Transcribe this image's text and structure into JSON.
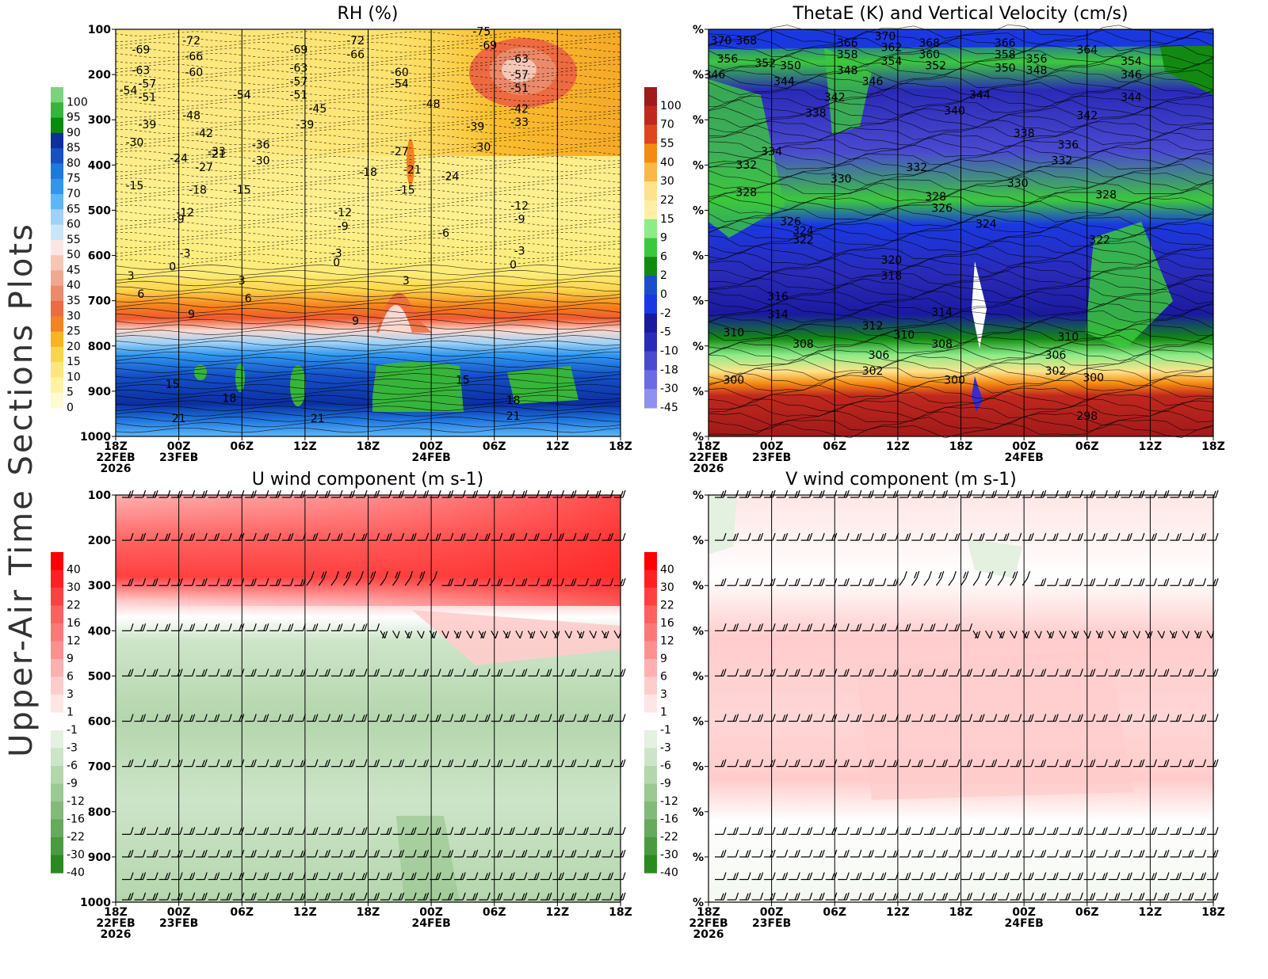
{
  "side_title": "Upper-Air Time Sections Plots",
  "time_axis": {
    "ticks": [
      "18Z",
      "00Z",
      "06Z",
      "12Z",
      "18Z",
      "00Z",
      "06Z",
      "12Z",
      "18Z"
    ],
    "dates": [
      "22FEB",
      "23FEB",
      "",
      "",
      "",
      "24FEB",
      "",
      "",
      ""
    ],
    "year": "2026"
  },
  "pressure_ticks": [
    "100",
    "200",
    "300",
    "400",
    "500",
    "600",
    "700",
    "800",
    "900",
    "1000"
  ],
  "percent_tick": "%",
  "chart_data": [
    {
      "type": "heatmap",
      "title": "RH (%)",
      "y_axis": "pressure (hPa)",
      "ylim": [
        1000,
        100
      ],
      "colorbar": {
        "labels": [
          "100",
          "95",
          "90",
          "85",
          "80",
          "75",
          "70",
          "65",
          "60",
          "55",
          "50",
          "45",
          "40",
          "35",
          "30",
          "25",
          "20",
          "15",
          "10",
          "5",
          "0"
        ],
        "colors": [
          "#7ad57a",
          "#37b53a",
          "#0b8b0b",
          "#0b2fa0",
          "#1550c8",
          "#1f77e0",
          "#2f97f0",
          "#5fb7f5",
          "#9fd2f8",
          "#c9e5fa",
          "#fbe6e6",
          "#f6c7b7",
          "#f1a891",
          "#ec8a6a",
          "#ee6a40",
          "#f5821c",
          "#fab51e",
          "#fdd54a",
          "#fde67a",
          "#fdf3a3",
          "#fffbd0"
        ]
      },
      "contour_labels": [
        {
          "t": 0.2,
          "p": 150,
          "v": "-69"
        },
        {
          "t": 0.2,
          "p": 195,
          "v": "-63"
        },
        {
          "t": 0.25,
          "p": 225,
          "v": "-57"
        },
        {
          "t": 0.25,
          "p": 255,
          "v": "-51"
        },
        {
          "t": 0.1,
          "p": 240,
          "v": "-54"
        },
        {
          "t": 0.25,
          "p": 315,
          "v": "-39"
        },
        {
          "t": 0.15,
          "p": 355,
          "v": "-30"
        },
        {
          "t": 0.15,
          "p": 450,
          "v": "-15"
        },
        {
          "t": 0.6,
          "p": 130,
          "v": "-72"
        },
        {
          "t": 0.62,
          "p": 165,
          "v": "-66"
        },
        {
          "t": 0.62,
          "p": 200,
          "v": "-60"
        },
        {
          "t": 0.6,
          "p": 295,
          "v": "-48"
        },
        {
          "t": 0.7,
          "p": 335,
          "v": "-42"
        },
        {
          "t": 0.8,
          "p": 375,
          "v": "-33"
        },
        {
          "t": 0.7,
          "p": 410,
          "v": "-27"
        },
        {
          "t": 0.5,
          "p": 390,
          "v": "-24"
        },
        {
          "t": 0.8,
          "p": 380,
          "v": "-21"
        },
        {
          "t": 0.65,
          "p": 460,
          "v": "-18"
        },
        {
          "t": 0.55,
          "p": 510,
          "v": "-12"
        },
        {
          "t": 0.5,
          "p": 525,
          "v": "-9"
        },
        {
          "t": 0.55,
          "p": 600,
          "v": "-3"
        },
        {
          "t": 0.45,
          "p": 630,
          "v": "0"
        },
        {
          "t": 1.0,
          "p": 250,
          "v": "-54"
        },
        {
          "t": 1.15,
          "p": 360,
          "v": "-36"
        },
        {
          "t": 1.15,
          "p": 395,
          "v": "-30"
        },
        {
          "t": 1.0,
          "p": 460,
          "v": "-15"
        },
        {
          "t": 1.45,
          "p": 150,
          "v": "-69"
        },
        {
          "t": 1.45,
          "p": 190,
          "v": "-63"
        },
        {
          "t": 1.45,
          "p": 220,
          "v": "-57"
        },
        {
          "t": 1.45,
          "p": 250,
          "v": "-51"
        },
        {
          "t": 1.6,
          "p": 280,
          "v": "-45"
        },
        {
          "t": 1.5,
          "p": 315,
          "v": "-39"
        },
        {
          "t": 1.9,
          "p": 130,
          "v": "-72"
        },
        {
          "t": 1.9,
          "p": 160,
          "v": "-66"
        },
        {
          "t": 2.0,
          "p": 420,
          "v": "-18"
        },
        {
          "t": 1.8,
          "p": 510,
          "v": "-12"
        },
        {
          "t": 1.8,
          "p": 540,
          "v": "-9"
        },
        {
          "t": 1.75,
          "p": 600,
          "v": "-3"
        },
        {
          "t": 1.75,
          "p": 620,
          "v": "0"
        },
        {
          "t": 2.25,
          "p": 200,
          "v": "-60"
        },
        {
          "t": 2.25,
          "p": 225,
          "v": "-54"
        },
        {
          "t": 2.5,
          "p": 270,
          "v": "-48"
        },
        {
          "t": 2.25,
          "p": 375,
          "v": "-27"
        },
        {
          "t": 2.35,
          "p": 415,
          "v": "-21"
        },
        {
          "t": 2.3,
          "p": 460,
          "v": "-15"
        },
        {
          "t": 2.65,
          "p": 430,
          "v": "-24"
        },
        {
          "t": 2.85,
          "p": 320,
          "v": "-39"
        },
        {
          "t": 2.9,
          "p": 365,
          "v": "-30"
        },
        {
          "t": 2.6,
          "p": 555,
          "v": "-6"
        },
        {
          "t": 2.9,
          "p": 110,
          "v": "-75"
        },
        {
          "t": 2.95,
          "p": 140,
          "v": "-69"
        },
        {
          "t": 3.2,
          "p": 170,
          "v": "-63"
        },
        {
          "t": 3.2,
          "p": 205,
          "v": "-57"
        },
        {
          "t": 3.2,
          "p": 235,
          "v": "-51"
        },
        {
          "t": 3.2,
          "p": 280,
          "v": "-42"
        },
        {
          "t": 3.2,
          "p": 310,
          "v": "-33"
        },
        {
          "t": 3.2,
          "p": 495,
          "v": "-12"
        },
        {
          "t": 3.2,
          "p": 525,
          "v": "-9"
        },
        {
          "t": 3.2,
          "p": 595,
          "v": "-3"
        },
        {
          "t": 3.15,
          "p": 625,
          "v": "0"
        },
        {
          "t": 0.12,
          "p": 650,
          "v": "3"
        },
        {
          "t": 0.2,
          "p": 690,
          "v": "6"
        },
        {
          "t": 0.6,
          "p": 735,
          "v": "9"
        },
        {
          "t": 1.0,
          "p": 660,
          "v": "3"
        },
        {
          "t": 1.05,
          "p": 700,
          "v": "6"
        },
        {
          "t": 2.3,
          "p": 660,
          "v": "3"
        },
        {
          "t": 1.9,
          "p": 750,
          "v": "9"
        },
        {
          "t": 0.45,
          "p": 890,
          "v": "15"
        },
        {
          "t": 0.9,
          "p": 920,
          "v": "18"
        },
        {
          "t": 0.5,
          "p": 965,
          "v": "21"
        },
        {
          "t": 1.6,
          "p": 965,
          "v": "21"
        },
        {
          "t": 2.75,
          "p": 880,
          "v": "15"
        },
        {
          "t": 3.15,
          "p": 925,
          "v": "18"
        },
        {
          "t": 3.15,
          "p": 960,
          "v": "21"
        }
      ]
    },
    {
      "type": "heatmap",
      "title": "ThetaE (K) and Vertical Velocity (cm/s)",
      "y_axis": "percent",
      "colorbar": {
        "labels": [
          "100",
          "70",
          "55",
          "40",
          "30",
          "22",
          "15",
          "9",
          "6",
          "2",
          "0",
          "-2",
          "-5",
          "-10",
          "-18",
          "-30",
          "-45"
        ],
        "colors": [
          "#a01a1a",
          "#c0281e",
          "#e0461e",
          "#f58a10",
          "#fab846",
          "#fde38a",
          "#fdf0a6",
          "#8cec88",
          "#3cc83c",
          "#128a12",
          "#1a4ecc",
          "#1a38e0",
          "#1a1aa0",
          "#2a2ab8",
          "#4a4ad0",
          "#6b6be4",
          "#9090f0"
        ]
      },
      "contour_labels": [
        {
          "t": 0.1,
          "p": 130,
          "v": "370"
        },
        {
          "t": 0.3,
          "p": 130,
          "v": "368"
        },
        {
          "t": 0.15,
          "p": 170,
          "v": "356"
        },
        {
          "t": 0.05,
          "p": 205,
          "v": "346"
        },
        {
          "t": 0.45,
          "p": 180,
          "v": "352"
        },
        {
          "t": 0.65,
          "p": 185,
          "v": "350"
        },
        {
          "t": 0.6,
          "p": 220,
          "v": "344"
        },
        {
          "t": 1.1,
          "p": 135,
          "v": "366"
        },
        {
          "t": 1.1,
          "p": 160,
          "v": "358"
        },
        {
          "t": 1.1,
          "p": 195,
          "v": "348"
        },
        {
          "t": 1.3,
          "p": 220,
          "v": "346"
        },
        {
          "t": 1.0,
          "p": 255,
          "v": "342"
        },
        {
          "t": 0.85,
          "p": 290,
          "v": "338"
        },
        {
          "t": 1.4,
          "p": 120,
          "v": "370"
        },
        {
          "t": 1.45,
          "p": 145,
          "v": "362"
        },
        {
          "t": 1.45,
          "p": 175,
          "v": "354"
        },
        {
          "t": 1.75,
          "p": 135,
          "v": "368"
        },
        {
          "t": 1.75,
          "p": 160,
          "v": "360"
        },
        {
          "t": 1.8,
          "p": 185,
          "v": "352"
        },
        {
          "t": 1.95,
          "p": 285,
          "v": "340"
        },
        {
          "t": 2.15,
          "p": 250,
          "v": "344"
        },
        {
          "t": 2.35,
          "p": 135,
          "v": "366"
        },
        {
          "t": 2.35,
          "p": 160,
          "v": "358"
        },
        {
          "t": 2.35,
          "p": 190,
          "v": "350"
        },
        {
          "t": 2.6,
          "p": 170,
          "v": "356"
        },
        {
          "t": 2.6,
          "p": 195,
          "v": "348"
        },
        {
          "t": 2.5,
          "p": 335,
          "v": "338"
        },
        {
          "t": 3.0,
          "p": 150,
          "v": "364"
        },
        {
          "t": 3.35,
          "p": 175,
          "v": "354"
        },
        {
          "t": 3.35,
          "p": 205,
          "v": "346"
        },
        {
          "t": 3.35,
          "p": 255,
          "v": "344"
        },
        {
          "t": 3.0,
          "p": 295,
          "v": "342"
        },
        {
          "t": 2.85,
          "p": 360,
          "v": "336"
        },
        {
          "t": 2.8,
          "p": 395,
          "v": "332"
        },
        {
          "t": 0.5,
          "p": 375,
          "v": "334"
        },
        {
          "t": 0.3,
          "p": 405,
          "v": "332"
        },
        {
          "t": 1.05,
          "p": 435,
          "v": "330"
        },
        {
          "t": 1.65,
          "p": 410,
          "v": "332"
        },
        {
          "t": 2.45,
          "p": 445,
          "v": "330"
        },
        {
          "t": 0.3,
          "p": 465,
          "v": "328"
        },
        {
          "t": 1.8,
          "p": 475,
          "v": "328"
        },
        {
          "t": 1.85,
          "p": 500,
          "v": "326"
        },
        {
          "t": 3.15,
          "p": 470,
          "v": "328"
        },
        {
          "t": 0.65,
          "p": 530,
          "v": "326"
        },
        {
          "t": 0.75,
          "p": 550,
          "v": "324"
        },
        {
          "t": 0.75,
          "p": 570,
          "v": "322"
        },
        {
          "t": 2.2,
          "p": 535,
          "v": "324"
        },
        {
          "t": 3.1,
          "p": 570,
          "v": "322"
        },
        {
          "t": 1.45,
          "p": 615,
          "v": "320"
        },
        {
          "t": 1.45,
          "p": 650,
          "v": "318"
        },
        {
          "t": 0.55,
          "p": 695,
          "v": "316"
        },
        {
          "t": 0.55,
          "p": 735,
          "v": "314"
        },
        {
          "t": 1.85,
          "p": 730,
          "v": "314"
        },
        {
          "t": 0.2,
          "p": 775,
          "v": "310"
        },
        {
          "t": 1.3,
          "p": 760,
          "v": "312"
        },
        {
          "t": 1.55,
          "p": 780,
          "v": "310"
        },
        {
          "t": 0.75,
          "p": 800,
          "v": "308"
        },
        {
          "t": 1.85,
          "p": 800,
          "v": "308"
        },
        {
          "t": 2.85,
          "p": 785,
          "v": "310"
        },
        {
          "t": 1.35,
          "p": 825,
          "v": "306"
        },
        {
          "t": 2.75,
          "p": 825,
          "v": "306"
        },
        {
          "t": 1.3,
          "p": 860,
          "v": "302"
        },
        {
          "t": 2.75,
          "p": 860,
          "v": "302"
        },
        {
          "t": 0.2,
          "p": 880,
          "v": "300"
        },
        {
          "t": 1.95,
          "p": 880,
          "v": "300"
        },
        {
          "t": 3.05,
          "p": 875,
          "v": "300"
        },
        {
          "t": 3.0,
          "p": 960,
          "v": "298"
        }
      ]
    },
    {
      "type": "heatmap",
      "title": "U wind component (m s-1)",
      "y_axis": "pressure (hPa)",
      "colorbar": {
        "labels": [
          "40",
          "30",
          "22",
          "16",
          "12",
          "9",
          "6",
          "3",
          "1",
          "-1",
          "-3",
          "-6",
          "-9",
          "-12",
          "-16",
          "-22",
          "-30",
          "-40"
        ],
        "colors": [
          "#ff0000",
          "#ff2020",
          "#ff4040",
          "#ff6060",
          "#ff7878",
          "#ff9090",
          "#ffb0b0",
          "#ffcccc",
          "#ffe6e6",
          "#ffffff",
          "#e4f0e0",
          "#cde4c8",
          "#b4d6ad",
          "#9bc893",
          "#82ba78",
          "#66aa5c",
          "#4a9a40",
          "#2a8a20"
        ]
      }
    },
    {
      "type": "heatmap",
      "title": "V wind component (m s-1)",
      "y_axis": "percent",
      "colorbar": {
        "labels": [
          "40",
          "30",
          "22",
          "16",
          "12",
          "9",
          "6",
          "3",
          "1",
          "-1",
          "-3",
          "-6",
          "-9",
          "-12",
          "-16",
          "-22",
          "-30",
          "-40"
        ],
        "colors": [
          "#ff0000",
          "#ff2020",
          "#ff4040",
          "#ff6060",
          "#ff7878",
          "#ff9090",
          "#ffb0b0",
          "#ffcccc",
          "#ffe6e6",
          "#ffffff",
          "#e4f0e0",
          "#cde4c8",
          "#b4d6ad",
          "#9bc893",
          "#82ba78",
          "#66aa5c",
          "#4a9a40",
          "#2a8a20"
        ]
      }
    }
  ]
}
